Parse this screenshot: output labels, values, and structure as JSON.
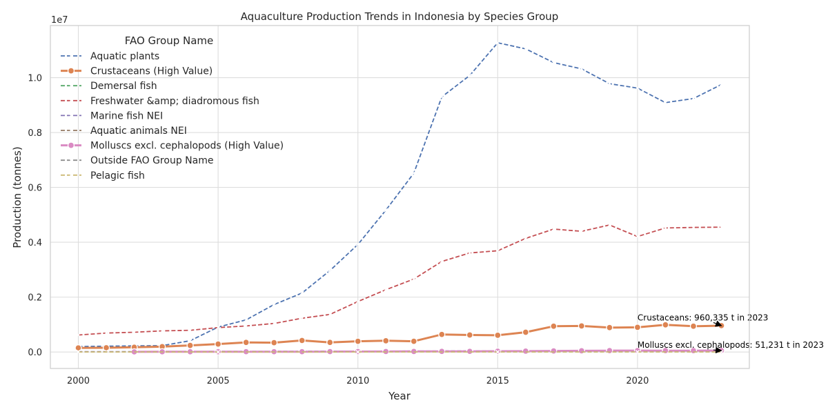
{
  "chart_data": {
    "type": "line",
    "title": "Aquaculture Production Trends in Indonesia by Species Group",
    "xlabel": "Year",
    "ylabel": "Production (tonnes)",
    "y_offset_label": "1e7",
    "xlim": [
      1999,
      2024
    ],
    "ylim": [
      -600000,
      11900000
    ],
    "x_ticks": [
      2000,
      2005,
      2010,
      2015,
      2020
    ],
    "y_ticks": [
      0,
      2000000,
      4000000,
      6000000,
      8000000,
      10000000
    ],
    "y_tick_labels": [
      "0.0",
      "0.2",
      "0.4",
      "0.6",
      "0.8",
      "1.0"
    ],
    "grid": true,
    "legend_title": "FAO Group Name",
    "legend_position": "upper-left",
    "series": [
      {
        "name": "Aquatic plants",
        "color": "#4c72b0",
        "style": "dashed",
        "marker": "x",
        "x": [
          2000,
          2001,
          2002,
          2003,
          2004,
          2005,
          2006,
          2007,
          2008,
          2009,
          2010,
          2011,
          2012,
          2013,
          2014,
          2015,
          2016,
          2017,
          2018,
          2019,
          2020,
          2021,
          2022,
          2023
        ],
        "values": [
          200000,
          212000,
          223000,
          232000,
          410000,
          910000,
          1170000,
          1730000,
          2150000,
          2970000,
          3920000,
          5170000,
          6520000,
          9300000,
          10080000,
          11270000,
          11050000,
          10550000,
          10320000,
          9780000,
          9620000,
          9090000,
          9240000,
          9750000
        ]
      },
      {
        "name": "Crustaceans (High Value)",
        "color": "#dd8452",
        "style": "solid",
        "marker": "circle",
        "thick": true,
        "x": [
          2000,
          2001,
          2002,
          2003,
          2004,
          2005,
          2006,
          2007,
          2008,
          2009,
          2010,
          2011,
          2012,
          2013,
          2014,
          2015,
          2016,
          2017,
          2018,
          2019,
          2020,
          2021,
          2022,
          2023
        ],
        "values": [
          150000,
          155000,
          175000,
          195000,
          240000,
          290000,
          350000,
          340000,
          420000,
          350000,
          390000,
          410000,
          390000,
          640000,
          620000,
          610000,
          720000,
          940000,
          950000,
          890000,
          900000,
          990000,
          940000,
          960335
        ]
      },
      {
        "name": "Demersal fish",
        "color": "#55a868",
        "style": "dashed",
        "marker": "x",
        "x": [
          2000,
          2005,
          2010,
          2015,
          2020,
          2023
        ],
        "values": [
          2000,
          3000,
          4000,
          5000,
          6000,
          6000
        ]
      },
      {
        "name": "Freshwater &amp; diadromous fish",
        "color": "#c44e52",
        "style": "dashed",
        "marker": "x",
        "x": [
          2000,
          2001,
          2002,
          2003,
          2004,
          2005,
          2006,
          2007,
          2008,
          2009,
          2010,
          2011,
          2012,
          2013,
          2014,
          2015,
          2016,
          2017,
          2018,
          2019,
          2020,
          2021,
          2022,
          2023
        ],
        "values": [
          620000,
          690000,
          720000,
          770000,
          790000,
          890000,
          950000,
          1040000,
          1230000,
          1370000,
          1840000,
          2270000,
          2660000,
          3300000,
          3610000,
          3690000,
          4140000,
          4480000,
          4400000,
          4630000,
          4210000,
          4520000,
          4540000,
          4550000
        ]
      },
      {
        "name": "Marine fish NEI",
        "color": "#8172b3",
        "style": "dashed",
        "marker": "x",
        "x": [
          2000,
          2001,
          2002,
          2003,
          2004,
          2005,
          2006,
          2007,
          2008,
          2009,
          2010,
          2011,
          2012,
          2013,
          2014,
          2015,
          2016,
          2017,
          2018,
          2019,
          2020,
          2021,
          2022,
          2023
        ],
        "values": [
          10000,
          12000,
          14000,
          16000,
          18000,
          20000,
          22000,
          24000,
          26000,
          28000,
          30000,
          32000,
          34000,
          36000,
          38000,
          40000,
          42000,
          44000,
          46000,
          48000,
          50000,
          50000,
          50000,
          50000
        ]
      },
      {
        "name": "Aquatic animals NEI",
        "color": "#937860",
        "style": "dashed",
        "marker": "x",
        "x": [
          2000,
          2005,
          2010,
          2015,
          2020,
          2023
        ],
        "values": [
          1000,
          2000,
          3000,
          4000,
          5000,
          5000
        ]
      },
      {
        "name": "Molluscs excl. cephalopods (High Value)",
        "color": "#da8bc3",
        "style": "solid",
        "marker": "circle",
        "thick": true,
        "x": [
          2002,
          2003,
          2004,
          2005,
          2006,
          2007,
          2008,
          2009,
          2010,
          2011,
          2012,
          2013,
          2014,
          2015,
          2016,
          2017,
          2018,
          2019,
          2020,
          2021,
          2022,
          2023
        ],
        "values": [
          5000,
          8000,
          9000,
          10000,
          11000,
          12000,
          12000,
          14000,
          16000,
          18000,
          20000,
          22000,
          24000,
          28000,
          32000,
          38000,
          44000,
          50000,
          51000,
          50000,
          50000,
          51231
        ]
      },
      {
        "name": "Outside FAO Group Name",
        "color": "#8c8c8c",
        "style": "dashed",
        "marker": "x",
        "x": [
          2000,
          2005,
          2010,
          2015,
          2020,
          2023
        ],
        "values": [
          500,
          800,
          1000,
          1200,
          1500,
          1500
        ]
      },
      {
        "name": "Pelagic fish",
        "color": "#ccb974",
        "style": "dashed",
        "marker": "x",
        "x": [
          2000,
          2005,
          2010,
          2015,
          2020,
          2023
        ],
        "values": [
          300,
          500,
          700,
          900,
          1000,
          1000
        ]
      }
    ],
    "annotations": [
      {
        "text": "Crustaceans: 960,335 t in 2023",
        "x": 2023,
        "y": 960335,
        "text_x": 2020,
        "text_y": 1150000
      },
      {
        "text": "Molluscs excl. cephalopods: 51,231 t in 2023",
        "x": 2023,
        "y": 51231,
        "text_x": 2020,
        "text_y": 150000
      }
    ]
  }
}
